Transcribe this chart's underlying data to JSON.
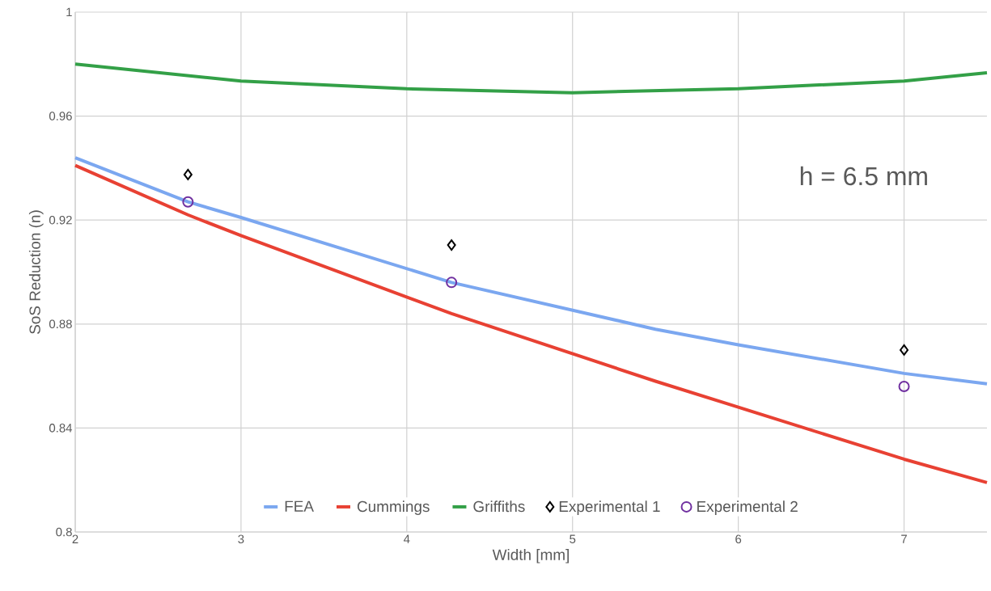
{
  "chart_data": {
    "type": "line",
    "xlabel": "Width [mm]",
    "ylabel": "SoS Reduction (n)",
    "annotations": [
      "h = 6.5 mm"
    ],
    "xlim": [
      2,
      7.5
    ],
    "xticks": [
      2,
      3,
      4,
      5,
      6,
      7
    ],
    "ylim": [
      0.8,
      1
    ],
    "yticks": [
      0.8,
      0.84,
      0.88,
      0.92,
      0.96,
      1
    ],
    "grid": true,
    "legend": "bottom",
    "series": [
      {
        "name": "FEA",
        "color": "#7ba7f0",
        "marker": "none",
        "x": [
          2,
          2.68,
          3,
          4.27,
          5.5,
          6,
          7,
          7.5
        ],
        "values": [
          0.944,
          0.927,
          0.921,
          0.896,
          0.878,
          0.872,
          0.861,
          0.857
        ]
      },
      {
        "name": "Cummings",
        "color": "#e84133",
        "marker": "none",
        "x": [
          2,
          2.68,
          3,
          4.27,
          5.5,
          6,
          7,
          7.5
        ],
        "values": [
          0.941,
          0.922,
          0.914,
          0.884,
          0.858,
          0.848,
          0.828,
          0.819
        ]
      },
      {
        "name": "Griffiths",
        "color": "#33a047",
        "marker": "none",
        "x": [
          2,
          3,
          4,
          5,
          6,
          7,
          7.5
        ],
        "values": [
          0.98,
          0.9735,
          0.9705,
          0.969,
          0.9705,
          0.9735,
          0.9767
        ]
      },
      {
        "name": "Experimental 1",
        "color": "#000000",
        "type": "scatter",
        "marker": "diamond",
        "x": [
          2.68,
          4.27,
          7
        ],
        "values": [
          0.9375,
          0.9104,
          0.87
        ]
      },
      {
        "name": "Experimental 2",
        "color": "#7030a0",
        "type": "scatter",
        "marker": "circle",
        "x": [
          2.68,
          4.27,
          7
        ],
        "values": [
          0.927,
          0.896,
          0.856
        ]
      }
    ]
  }
}
